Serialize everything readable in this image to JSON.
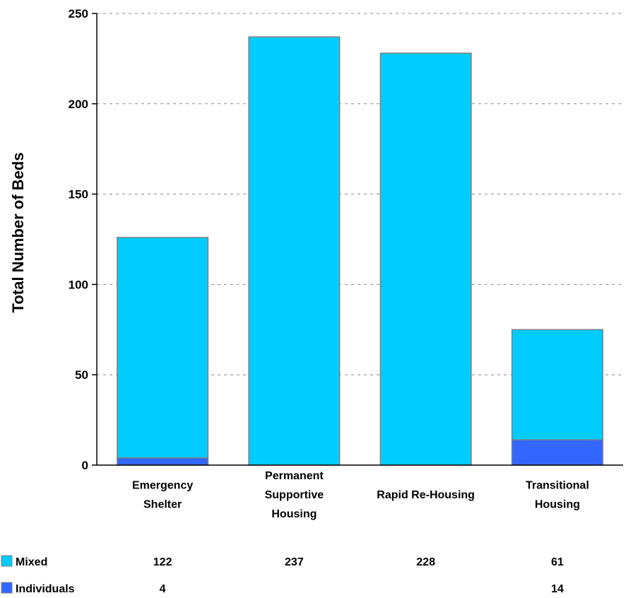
{
  "chart_data": {
    "type": "bar",
    "stacked": true,
    "categories": [
      [
        "Emergency",
        "Shelter"
      ],
      [
        "Permanent",
        "Supportive",
        "Housing"
      ],
      [
        "Rapid Re-Housing"
      ],
      [
        "Transitional",
        "Housing"
      ]
    ],
    "series": [
      {
        "name": "Individuals",
        "color": "#3366ff",
        "values": [
          4,
          null,
          null,
          14
        ]
      },
      {
        "name": "Mixed",
        "color": "#00ccff",
        "values": [
          122,
          237,
          228,
          61
        ]
      }
    ],
    "ylabel": "Total Number of Beds",
    "ylim": [
      0,
      250
    ],
    "yticks": [
      0,
      50,
      100,
      150,
      200,
      250
    ],
    "grid": "horizontal-dashed",
    "legend": "data-table-bottom",
    "table_rows": [
      "Mixed",
      "Individuals"
    ]
  }
}
